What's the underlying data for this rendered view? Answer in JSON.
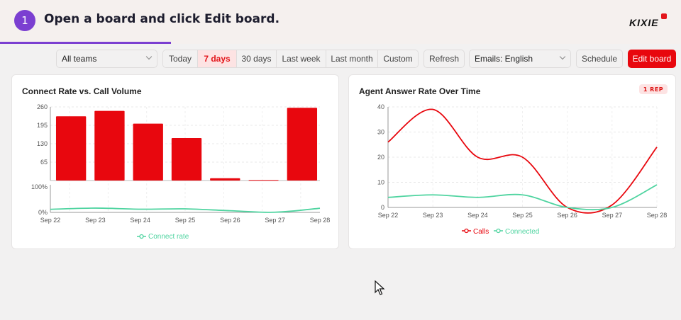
{
  "header": {
    "step_number": "1",
    "instruction": "Open a board and click Edit board.",
    "logo": "KIXIE"
  },
  "toolbar": {
    "team_select": "All teams",
    "ranges": [
      "Today",
      "7 days",
      "30 days",
      "Last week",
      "Last month",
      "Custom"
    ],
    "active_range": "7 days",
    "refresh_label": "Refresh",
    "emails_select": "Emails: English",
    "schedule_label": "Schedule",
    "edit_board_label": "Edit board"
  },
  "colors": {
    "brand_purple": "#7b3fd1",
    "brand_red": "#e8070e",
    "connected_green": "#4fd4a0"
  },
  "chart_data": [
    {
      "type": "bar",
      "title": "Connect Rate vs. Call Volume",
      "categories": [
        "Sep 22",
        "Sep 23",
        "Sep 24",
        "Sep 25",
        "Sep 26",
        "Sep 27",
        "Sep 28"
      ],
      "series": [
        {
          "values": [
            227,
            246,
            201,
            150,
            8,
            2,
            257
          ]
        }
      ],
      "y_ticks": [
        "260",
        "195",
        "130",
        "65"
      ],
      "ylim": [
        0,
        260
      ],
      "secondary": {
        "type": "line",
        "name": "Connect rate",
        "values": [
          20,
          28,
          21,
          23,
          11,
          1,
          27
        ],
        "y_ticks": [
          "100%",
          "0%"
        ],
        "ylim": [
          0,
          100
        ]
      },
      "legend": [
        "Connect rate"
      ]
    },
    {
      "type": "line",
      "title": "Agent Answer Rate Over Time",
      "badge": "1 REP",
      "categories": [
        "Sep 22",
        "Sep 23",
        "Sep 24",
        "Sep 25",
        "Sep 26",
        "Sep 27",
        "Sep 28"
      ],
      "series": [
        {
          "name": "Calls",
          "values": [
            26,
            39,
            20,
            20,
            0,
            1,
            24
          ]
        },
        {
          "name": "Connected",
          "values": [
            4,
            5,
            4,
            5,
            0,
            0,
            9
          ]
        }
      ],
      "y_ticks": [
        "40",
        "30",
        "20",
        "10",
        "0"
      ],
      "ylim": [
        0,
        40
      ],
      "legend": [
        "Calls",
        "Connected"
      ]
    }
  ]
}
